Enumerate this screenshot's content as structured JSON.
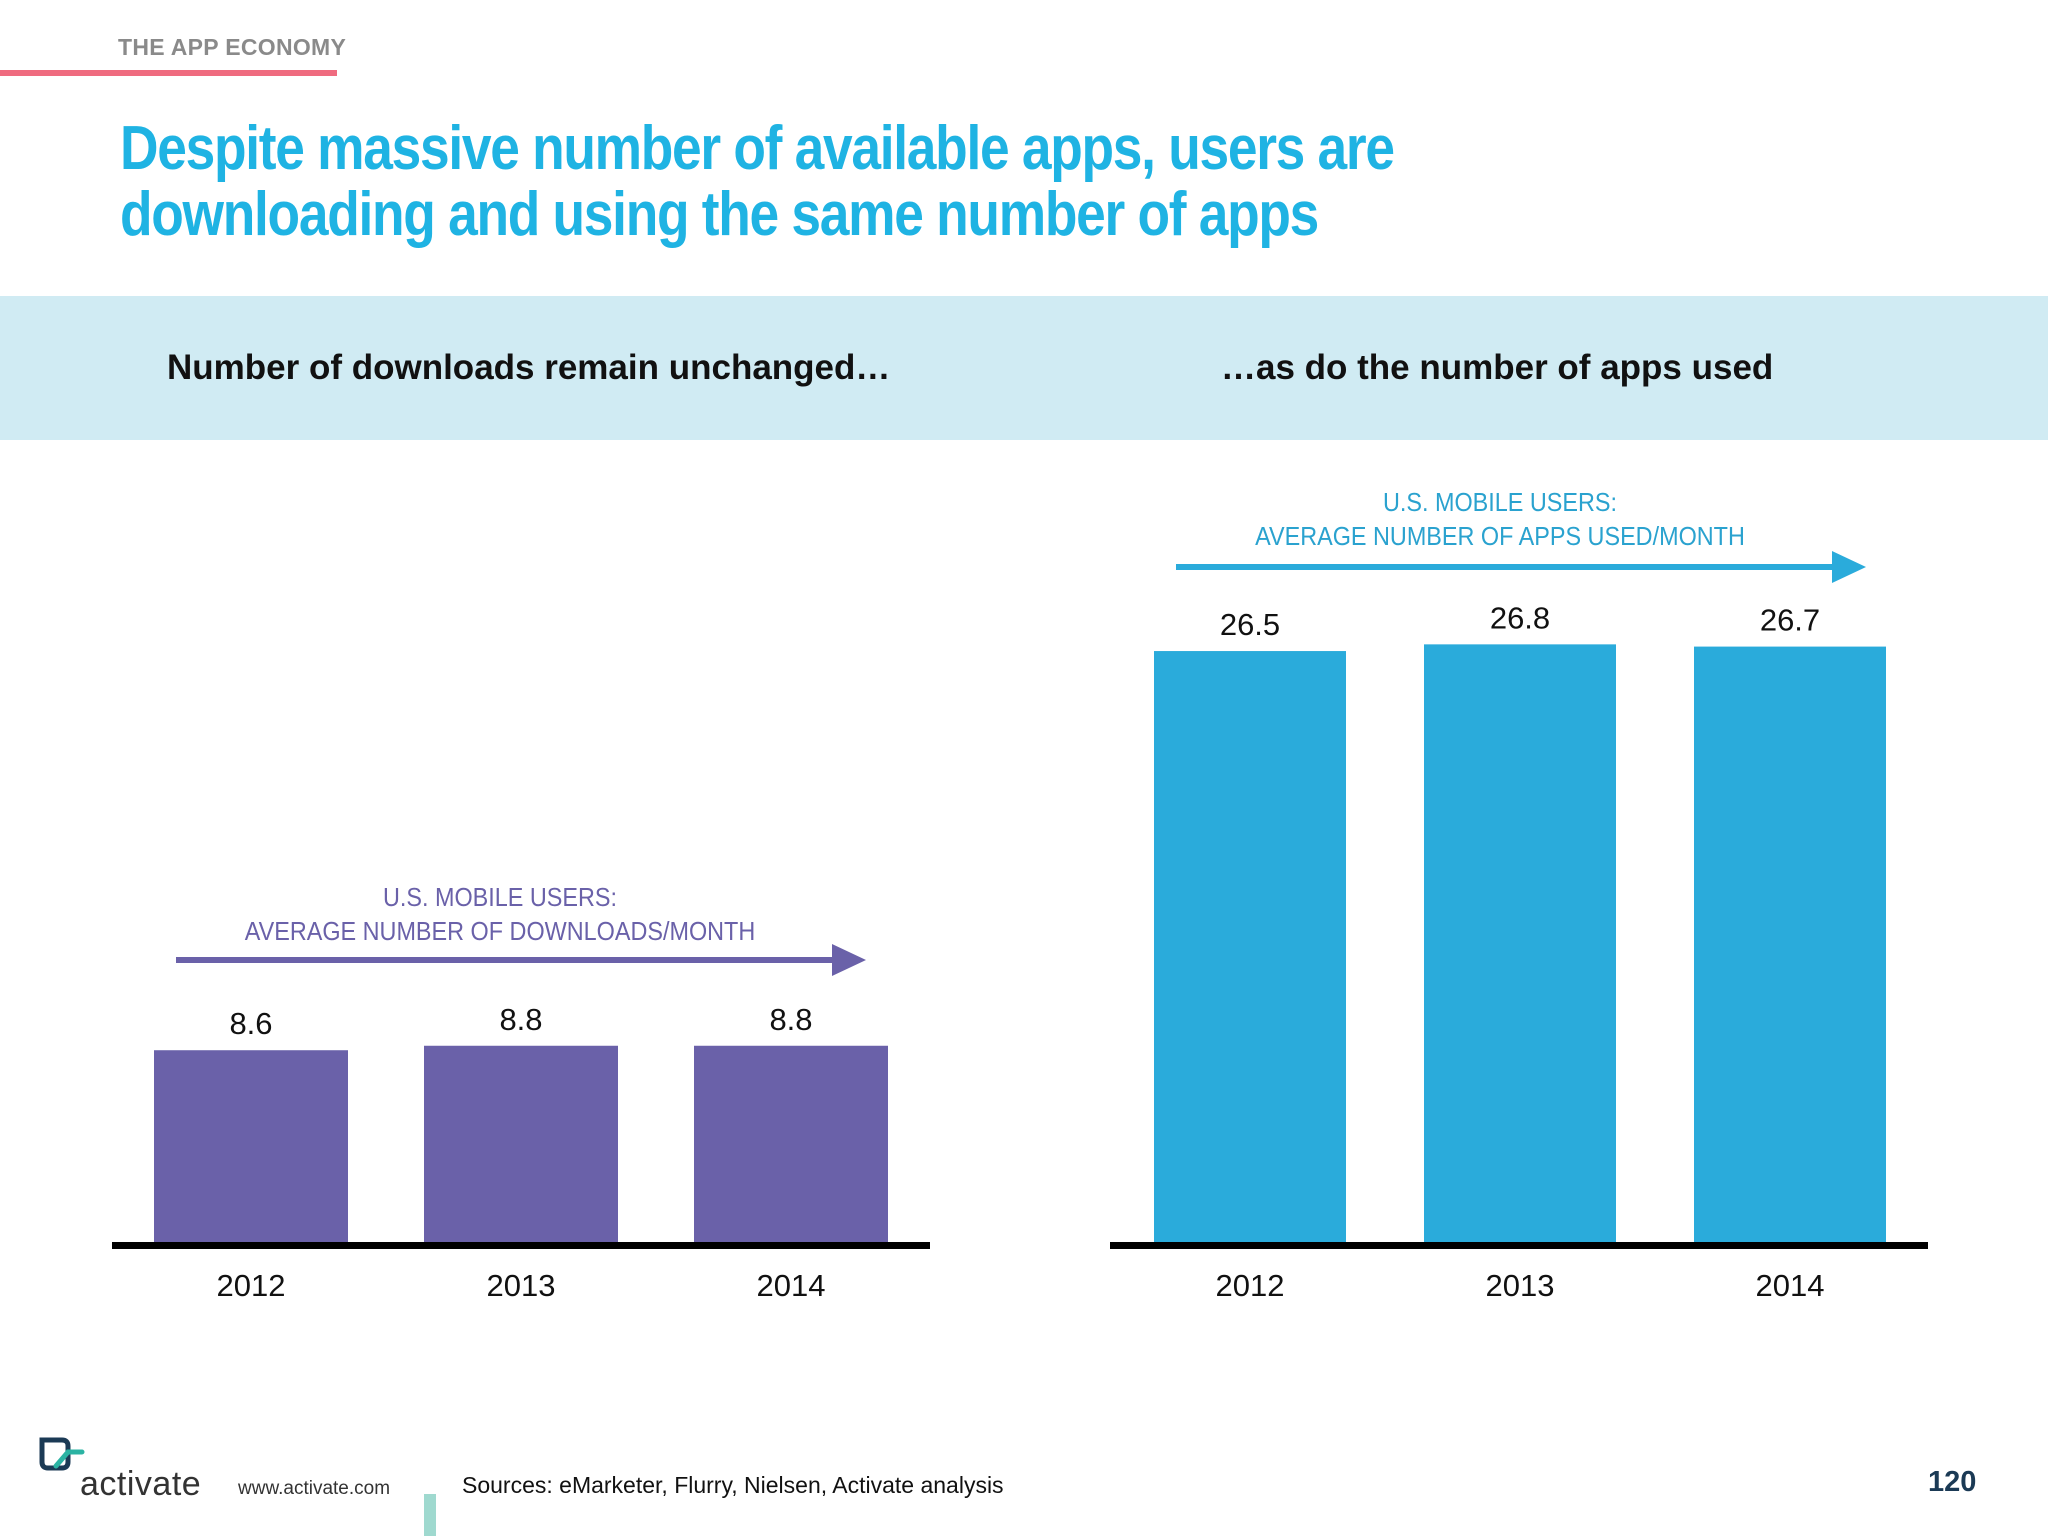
{
  "header": {
    "section": "THE APP ECONOMY",
    "headline": "Despite massive number of available apps, users are downloading and using the same number of apps",
    "accent_color": "#ef6b7f",
    "headline_color": "#1fb3e3"
  },
  "band": {
    "left_title": "Number of downloads remain unchanged…",
    "right_title": "…as do the number of apps used",
    "background": "#d0ebf3"
  },
  "chart_data": [
    {
      "type": "bar",
      "caption_lines": [
        "U.S. MOBILE USERS:",
        "AVERAGE NUMBER OF DOWNLOADS/MONTH"
      ],
      "categories": [
        "2012",
        "2013",
        "2014"
      ],
      "values": [
        8.6,
        8.8,
        8.8
      ],
      "color": "#6a61a9",
      "ylim": [
        0,
        30
      ]
    },
    {
      "type": "bar",
      "caption_lines": [
        "U.S. MOBILE USERS:",
        "AVERAGE NUMBER OF APPS USED/MONTH"
      ],
      "categories": [
        "2012",
        "2013",
        "2014"
      ],
      "values": [
        26.5,
        26.8,
        26.7
      ],
      "color": "#2aabdb",
      "ylim": [
        0,
        30
      ]
    }
  ],
  "footer": {
    "logo_text": "activate",
    "url": "www.activate.com",
    "sources": "Sources: eMarketer, Flurry, Nielsen, Activate analysis",
    "page_number": "120"
  }
}
